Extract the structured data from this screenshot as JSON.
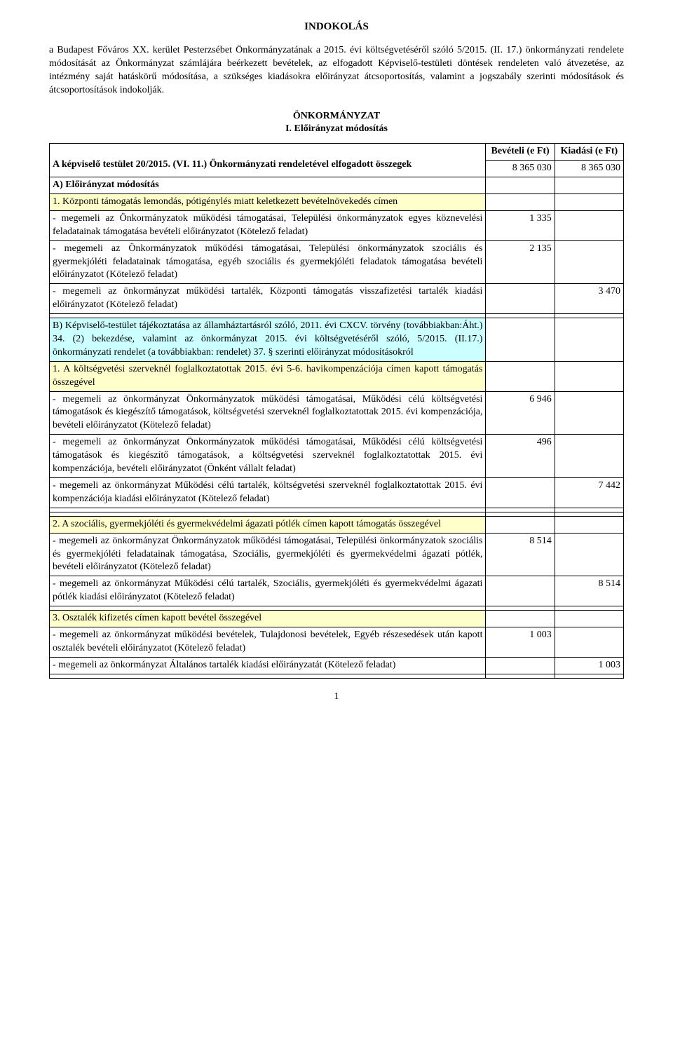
{
  "title": "INDOKOLÁS",
  "intro": "a Budapest Főváros XX. kerület Pesterzsébet Önkormányzatának a 2015. évi költségvetéséről szóló 5/2015. (II. 17.) önkormányzati rendelete módosítását az Önkormányzat számlájára beérkezett bevételek, az elfogadott Képviselő-testületi döntések rendeleten való átvezetése, az intézmény saját hatáskörű módosítása, a szükséges kiadásokra előirányzat átcsoportosítás, valamint a jogszabály szerinti módosítások és átcsoportosítások indokolják.",
  "section_heading_1": "ÖNKORMÁNYZAT",
  "section_heading_2": "I. Előirányzat módosítás",
  "headers": {
    "bevetel": "Bevételi (e Ft)",
    "kiadas": "Kiadási (e Ft)"
  },
  "row_adopted_label": "A képviselő testület 20/2015. (VI. 11.) Önkormányzati rendeletével elfogadott összegek",
  "row_adopted_bev": "8 365 030",
  "row_adopted_kiad": "8 365 030",
  "row_A_label": "A) Előirányzat módosítás",
  "row_A1_label": "1. Központi támogatás lemondás, pótigénylés miatt keletkezett bevételnövekedés címen",
  "row_A1a_label": "- megemeli az Önkormányzatok működési támogatásai, Települési önkormányzatok egyes köznevelési feladatainak támogatása bevételi előirányzatot (Kötelező feladat)",
  "row_A1a_bev": "1 335",
  "row_A1b_label": "- megemeli az Önkormányzatok működési támogatásai, Települési önkormányzatok szociális és gyermekjóléti feladatainak támogatása, egyéb szociális és gyermekjóléti feladatok támogatása bevételi előirányzatot (Kötelező feladat)",
  "row_A1b_bev": "2 135",
  "row_A1c_label": "- megemeli az önkormányzat működési tartalék, Központi támogatás visszafizetési tartalék kiadási előirányzatot (Kötelező feladat)",
  "row_A1c_kiad": "3 470",
  "row_B_label": "B) Képviselő-testület tájékoztatása az államháztartásról szóló, 2011. évi CXCV. törvény (továbbiakban:Áht.) 34. (2) bekezdése, valamint az önkormányzat 2015. évi költségvetéséről szóló, 5/2015. (II.17.) önkormányzati rendelet (a továbbiakban: rendelet) 37. § szerinti előirányzat módosításokról",
  "row_B1_label": "1. A költségvetési szerveknél foglalkoztatottak 2015. évi 5-6. havikompenzációja címen kapott támogatás összegével",
  "row_B1a_label": "- megemeli az önkormányzat Önkormányzatok működési támogatásai, Működési célú költségvetési támogatások és kiegészítő támogatások, költségvetési szerveknél foglalkoztatottak 2015. évi kompenzációja, bevételi előirányzatot (Kötelező feladat)",
  "row_B1a_bev": "6 946",
  "row_B1b_label": "- megemeli az önkormányzat Önkormányzatok működési támogatásai, Működési célú költségvetési támogatások és kiegészítő támogatások, a költségvetési szerveknél foglalkoztatottak 2015. évi kompenzációja, bevételi előirányzatot (Önként vállalt feladat)",
  "row_B1b_bev": "496",
  "row_B1c_label": "- megemeli az önkormányzat Működési célú tartalék, költségvetési szerveknél foglalkoztatottak 2015. évi kompenzációja kiadási előirányzatot (Kötelező feladat)",
  "row_B1c_kiad": "7 442",
  "row_B2_label": "2. A szociális, gyermekjóléti és gyermekvédelmi ágazati pótlék címen kapott támogatás összegével",
  "row_B2a_label": "- megemeli az önkormányzat Önkormányzatok működési támogatásai, Települési önkormányzatok szociális és gyermekjóléti feladatainak támogatása, Szociális, gyermekjóléti és gyermekvédelmi ágazati pótlék, bevételi előirányzatot (Kötelező feladat)",
  "row_B2a_bev": "8 514",
  "row_B2b_label": "- megemeli az önkormányzat Működési célú tartalék, Szociális, gyermekjóléti és gyermekvédelmi ágazati pótlék kiadási előirányzatot (Kötelező feladat)",
  "row_B2b_kiad": "8 514",
  "row_B3_label": "3. Osztalék kifizetés címen kapott bevétel összegével",
  "row_B3a_label": "- megemeli az önkormányzat működési bevételek, Tulajdonosi bevételek, Egyéb részesedések után kapott osztalék bevételi előirányzatot (Kötelező feladat)",
  "row_B3a_bev": "1 003",
  "row_B3b_label": "- megemeli az önkormányzat Általános tartalék kiadási előirányzatát (Kötelező feladat)",
  "row_B3b_kiad": "1 003",
  "colors": {
    "yellow": "#ffffcc",
    "blue": "#ccffff",
    "border": "#000000",
    "bg": "#ffffff",
    "text": "#000000"
  },
  "typography": {
    "font_family": "Times New Roman",
    "body_size_pt": 11,
    "title_size_pt": 12
  },
  "page_number": "1"
}
